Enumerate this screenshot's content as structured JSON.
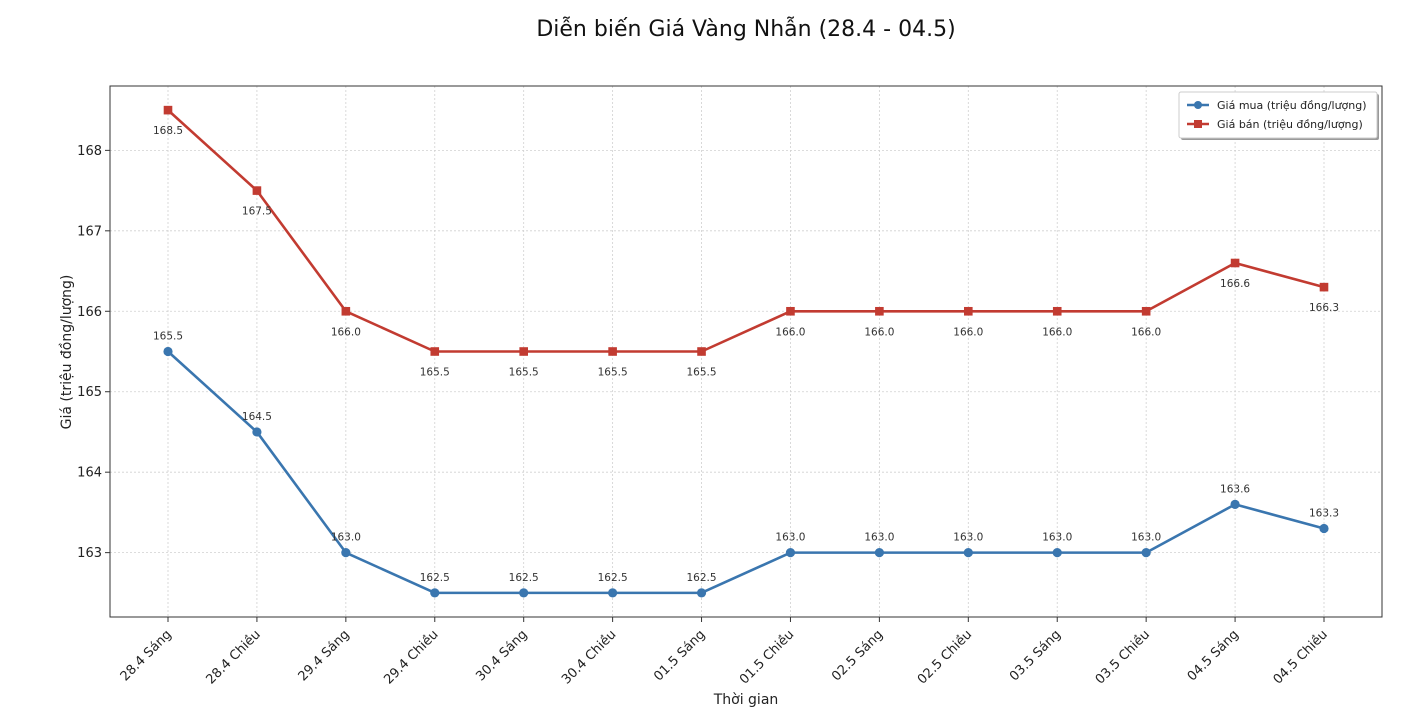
{
  "chart_data": {
    "type": "line",
    "title": "Diễn biến Giá Vàng Nhẫn (28.4 - 04.5)",
    "xlabel": "Thời gian",
    "ylabel": "Giá (triệu đồng/lượng)",
    "categories": [
      "28.4 Sáng",
      "28.4 Chiều",
      "29.4 Sáng",
      "29.4 Chiều",
      "30.4 Sáng",
      "30.4 Chiều",
      "01.5 Sáng",
      "01.5 Chiều",
      "02.5 Sáng",
      "02.5 Chiều",
      "03.5 Sáng",
      "03.5 Chiều",
      "04.5 Sáng",
      "04.5 Chiều"
    ],
    "ylim": [
      162.2,
      168.8
    ],
    "yticks": [
      163,
      164,
      165,
      166,
      167,
      168
    ],
    "grid": true,
    "legend_position": "top-right",
    "series": [
      {
        "name": "Giá mua (triệu đồng/lượng)",
        "color": "#3a76af",
        "marker": "circle",
        "label_position": "above",
        "values": [
          165.5,
          164.5,
          163.0,
          162.5,
          162.5,
          162.5,
          162.5,
          163.0,
          163.0,
          163.0,
          163.0,
          163.0,
          163.6,
          163.3
        ]
      },
      {
        "name": "Giá bán (triệu đồng/lượng)",
        "color": "#c23b31",
        "marker": "square",
        "label_position": "below",
        "values": [
          168.5,
          167.5,
          166.0,
          165.5,
          165.5,
          165.5,
          165.5,
          166.0,
          166.0,
          166.0,
          166.0,
          166.0,
          166.6,
          166.3
        ]
      }
    ]
  }
}
